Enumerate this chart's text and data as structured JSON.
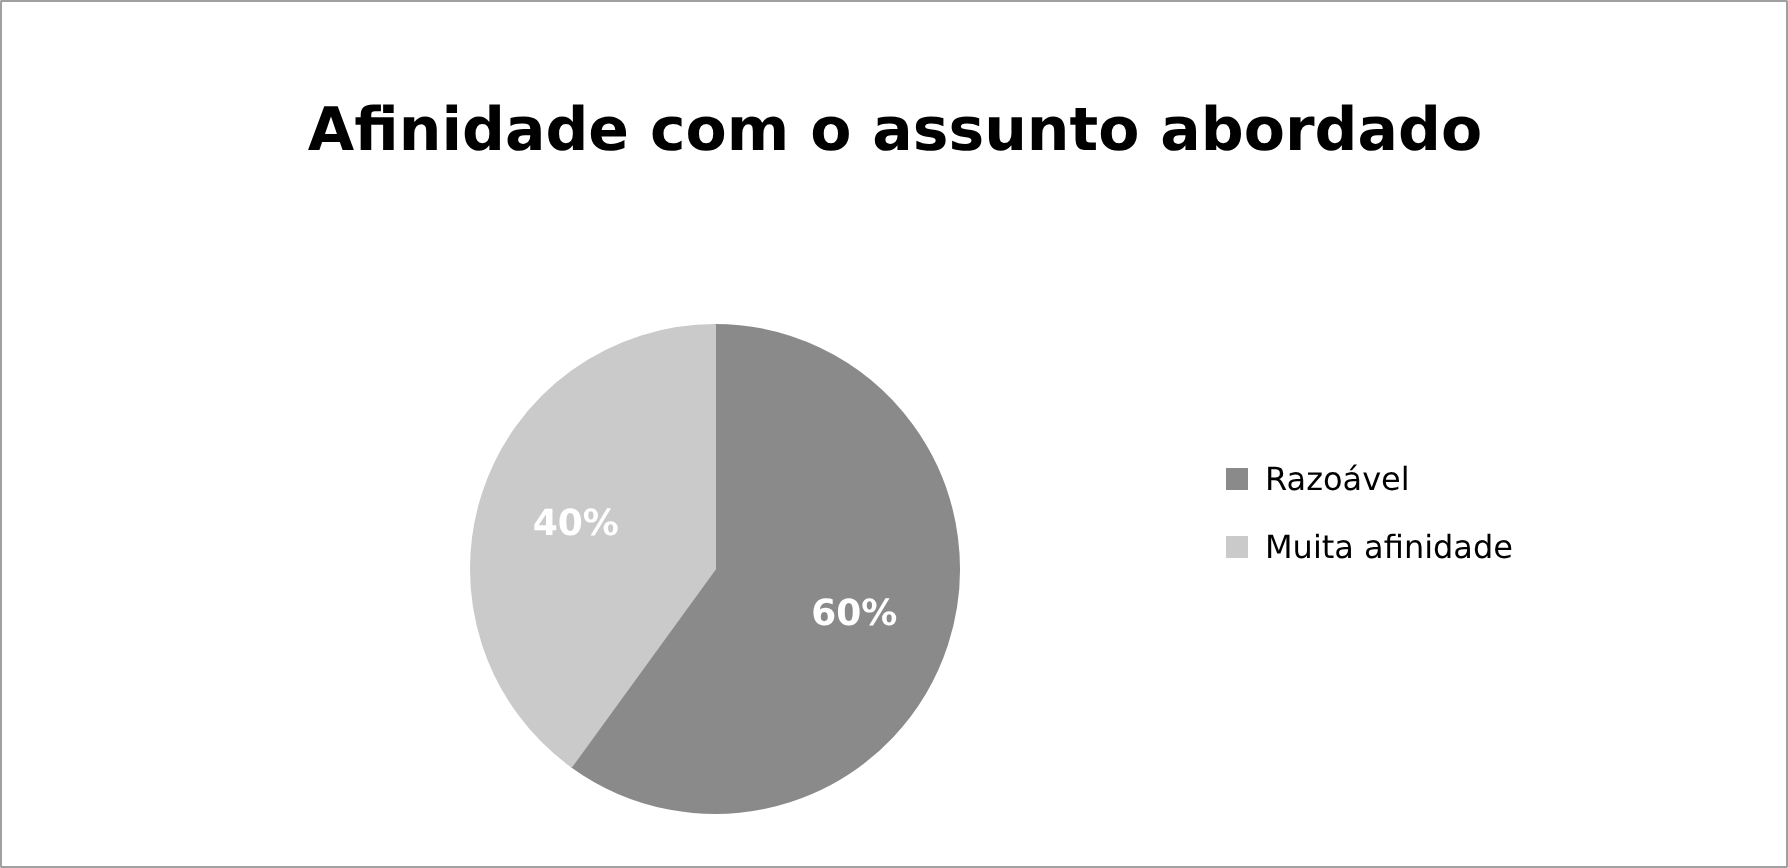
{
  "chart_data": {
    "type": "pie",
    "title": "Afinidade com o assunto abordado",
    "categories": [
      "Razoável",
      "Muita afinidade"
    ],
    "values": [
      60,
      40
    ],
    "colors": [
      "#8a8a8a",
      "#cacaca"
    ],
    "value_labels": [
      "60%",
      "40%"
    ],
    "legend": "right"
  }
}
